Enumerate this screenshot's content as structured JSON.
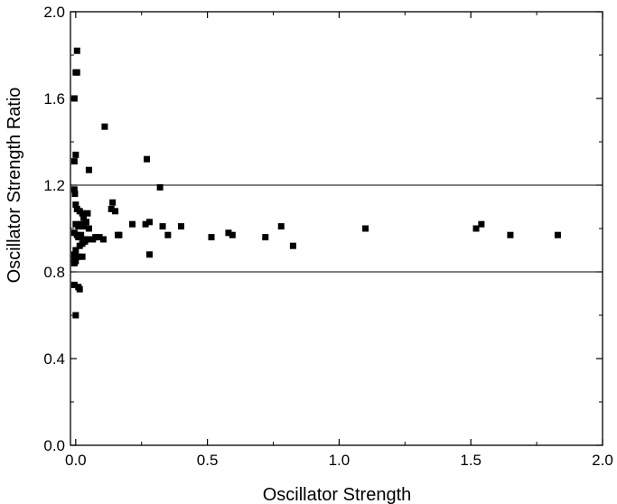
{
  "chart_data": {
    "type": "scatter",
    "title": "",
    "xlabel": "Oscillator Strength",
    "ylabel": "Oscillator Strength Ratio",
    "xlim": [
      -0.02,
      2.0
    ],
    "ylim": [
      0.0,
      2.0
    ],
    "xticks": [
      0.0,
      0.5,
      1.0,
      1.5,
      2.0
    ],
    "xtick_labels": [
      "0.0",
      "0.5",
      "1.0",
      "1.5",
      "2.0"
    ],
    "yticks": [
      0.0,
      0.4,
      0.8,
      1.2,
      1.6,
      2.0
    ],
    "ytick_labels": [
      "0.0",
      "0.4",
      "0.8",
      "1.2",
      "1.6",
      "2.0"
    ],
    "reference_lines": [
      0.8,
      1.2
    ],
    "grid": false,
    "legend": "none",
    "marker": "square",
    "color": "#000000",
    "points": [
      {
        "x": 0.005,
        "y": 1.82
      },
      {
        "x": 0.0,
        "y": 1.72
      },
      {
        "x": 0.005,
        "y": 1.72
      },
      {
        "x": -0.005,
        "y": 1.6
      },
      {
        "x": 0.0,
        "y": 1.34
      },
      {
        "x": -0.005,
        "y": 1.31
      },
      {
        "x": -0.005,
        "y": 1.18
      },
      {
        "x": -0.003,
        "y": 1.16
      },
      {
        "x": 0.0,
        "y": 1.11
      },
      {
        "x": 0.005,
        "y": 1.09
      },
      {
        "x": 0.015,
        "y": 1.08
      },
      {
        "x": 0.025,
        "y": 1.07
      },
      {
        "x": 0.03,
        "y": 1.05
      },
      {
        "x": 0.045,
        "y": 1.07
      },
      {
        "x": 0.04,
        "y": 1.03
      },
      {
        "x": 0.0,
        "y": 1.02
      },
      {
        "x": 0.01,
        "y": 1.01
      },
      {
        "x": 0.02,
        "y": 1.02
      },
      {
        "x": 0.03,
        "y": 1.01
      },
      {
        "x": 0.05,
        "y": 1.0
      },
      {
        "x": -0.005,
        "y": 0.98
      },
      {
        "x": 0.005,
        "y": 0.97
      },
      {
        "x": 0.01,
        "y": 0.96
      },
      {
        "x": 0.02,
        "y": 0.97
      },
      {
        "x": 0.03,
        "y": 0.95
      },
      {
        "x": 0.025,
        "y": 0.93
      },
      {
        "x": 0.035,
        "y": 0.94
      },
      {
        "x": 0.045,
        "y": 0.95
      },
      {
        "x": 0.015,
        "y": 0.92
      },
      {
        "x": 0.0,
        "y": 0.9
      },
      {
        "x": -0.005,
        "y": 0.88
      },
      {
        "x": 0.0,
        "y": 0.87
      },
      {
        "x": 0.01,
        "y": 0.87
      },
      {
        "x": 0.025,
        "y": 0.87
      },
      {
        "x": -0.005,
        "y": 0.86
      },
      {
        "x": 0.0,
        "y": 0.85
      },
      {
        "x": -0.005,
        "y": 0.84
      },
      {
        "x": -0.005,
        "y": 0.74
      },
      {
        "x": 0.01,
        "y": 0.73
      },
      {
        "x": 0.015,
        "y": 0.72
      },
      {
        "x": 0.0,
        "y": 0.6
      },
      {
        "x": 0.05,
        "y": 1.27
      },
      {
        "x": 0.11,
        "y": 1.47
      },
      {
        "x": 0.065,
        "y": 0.95
      },
      {
        "x": 0.075,
        "y": 0.96
      },
      {
        "x": 0.09,
        "y": 0.96
      },
      {
        "x": 0.105,
        "y": 0.95
      },
      {
        "x": 0.135,
        "y": 1.09
      },
      {
        "x": 0.14,
        "y": 1.12
      },
      {
        "x": 0.15,
        "y": 1.08
      },
      {
        "x": 0.16,
        "y": 0.97
      },
      {
        "x": 0.165,
        "y": 0.97
      },
      {
        "x": 0.215,
        "y": 1.02
      },
      {
        "x": 0.265,
        "y": 1.02
      },
      {
        "x": 0.27,
        "y": 1.32
      },
      {
        "x": 0.28,
        "y": 1.03
      },
      {
        "x": 0.28,
        "y": 0.88
      },
      {
        "x": 0.32,
        "y": 1.19
      },
      {
        "x": 0.33,
        "y": 1.01
      },
      {
        "x": 0.35,
        "y": 0.97
      },
      {
        "x": 0.4,
        "y": 1.01
      },
      {
        "x": 0.515,
        "y": 0.96
      },
      {
        "x": 0.58,
        "y": 0.98
      },
      {
        "x": 0.595,
        "y": 0.97
      },
      {
        "x": 0.72,
        "y": 0.96
      },
      {
        "x": 0.78,
        "y": 1.01
      },
      {
        "x": 0.825,
        "y": 0.92
      },
      {
        "x": 1.1,
        "y": 1.0
      },
      {
        "x": 1.52,
        "y": 1.0
      },
      {
        "x": 1.54,
        "y": 1.02
      },
      {
        "x": 1.65,
        "y": 0.97
      },
      {
        "x": 1.83,
        "y": 0.97
      }
    ]
  }
}
